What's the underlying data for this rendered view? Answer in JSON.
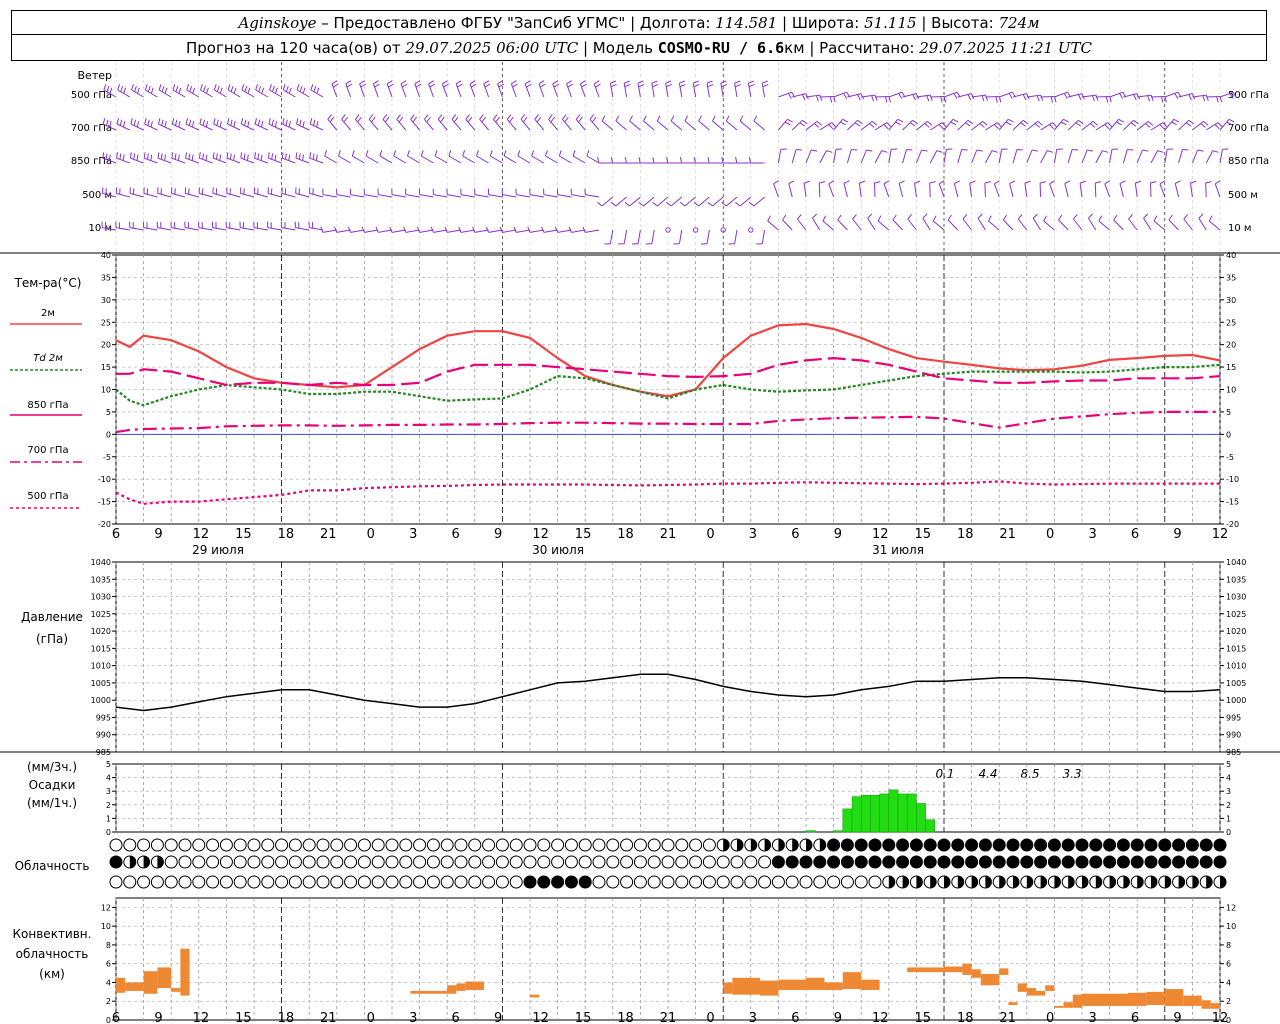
{
  "header": {
    "station": "Aginskoye",
    "provider": " – Предоставлено ФГБУ \"ЗапСиб УГМС\" | Долгота: ",
    "lon": "114.581",
    "lat_label": " | Широта: ",
    "lat": "51.115",
    "alt_label": " | Высота: ",
    "alt": "724м",
    "forecast_label": "Прогноз на 120 часа(ов) от ",
    "forecast_time": "29.07.2025 06:00 UTC",
    "model_label": " | Модель ",
    "model": "COSMO-RU / 6.6",
    "model_unit": "км",
    "calc_label": " | Рассчитано: ",
    "calc_time": "29.07.2025 11:21 UTC"
  },
  "labels": {
    "wind": "Ветер",
    "levels": [
      "500 гПа",
      "700 гПа",
      "850 гПа",
      "500 м",
      "10  м"
    ],
    "temp_title": "Тем-ра(°C)",
    "legend": [
      "2м",
      "Td  2м",
      "850 гПа",
      "700 гПа",
      "500 гПа"
    ],
    "pressure_title": "Давление",
    "pressure_unit": "(гПа)",
    "precip_unit1": "(мм/3ч.)",
    "precip_title": "Осадки",
    "precip_unit2": "(мм/1ч.)",
    "cloud_title": "Облачность",
    "conv1": "Конвективн.",
    "conv2": "облачность",
    "conv3": "(км)",
    "date_labels": [
      "29 июля",
      "30 июля",
      "31 июля"
    ],
    "x_ticks": [
      "6",
      "9",
      "12",
      "15",
      "18",
      "21",
      "0",
      "3",
      "6",
      "9",
      "12",
      "15",
      "18",
      "21",
      "0",
      "3",
      "6",
      "9",
      "12",
      "15",
      "18",
      "21",
      "0",
      "3",
      "6",
      "9",
      "12"
    ],
    "precip_totals": [
      "0.1",
      "4.4",
      "8.5",
      "3.3"
    ]
  },
  "colors": {
    "t2m": "#ee4444",
    "td2m": "#228822",
    "t850": "#e8007a",
    "t700": "#e8007a",
    "t500": "#e8007a",
    "wind": "#8833cc",
    "precip": "#22dd11",
    "conv": "#ee8833",
    "zero_line": "#4444cc"
  },
  "chart_data": [
    {
      "type": "line",
      "name": "temperature",
      "x_hours": [
        0,
        1.5,
        3,
        6,
        9,
        12,
        15,
        18,
        21,
        24,
        27,
        30,
        33,
        36,
        39,
        42,
        45,
        48,
        51,
        54,
        57,
        60,
        63,
        66,
        69,
        72,
        75,
        78,
        81,
        84,
        87,
        90,
        93,
        96,
        99,
        102,
        105,
        108,
        111,
        114,
        117,
        120
      ],
      "ylim": [
        -20,
        40
      ],
      "series": [
        {
          "name": "2м",
          "values": [
            21,
            19.5,
            22,
            21,
            18.5,
            15,
            12.5,
            11.5,
            11,
            10.5,
            11,
            15,
            19,
            22,
            23,
            23,
            21.5,
            17,
            13,
            11,
            9.5,
            8.5,
            10,
            17,
            22,
            24.3,
            24.6,
            23.5,
            21.5,
            19,
            17,
            16.2,
            15.5,
            14.7,
            14.3,
            14.5,
            15.3,
            16.6,
            17,
            17.5,
            17.7,
            16.5
          ]
        },
        {
          "name": "Td  2м",
          "values": [
            10,
            7.5,
            6.5,
            8.5,
            10,
            11,
            10.5,
            10,
            9,
            9,
            9.5,
            9.5,
            8.5,
            7.5,
            7.8,
            8,
            10,
            13,
            12.5,
            11,
            9.5,
            8,
            10,
            11,
            10,
            9.5,
            9.8,
            10,
            11,
            12,
            13,
            13.5,
            14,
            14,
            14,
            14,
            13.8,
            14,
            14.5,
            15,
            15,
            15.5
          ]
        },
        {
          "name": "850 гПа",
          "values": [
            13.5,
            13.5,
            14.5,
            14,
            12.5,
            11,
            11.5,
            11.5,
            11,
            11.5,
            11,
            11,
            11.5,
            14,
            15.5,
            15.5,
            15.5,
            15,
            14.5,
            14,
            13.5,
            13,
            12.8,
            13,
            13.5,
            15.5,
            16.5,
            17,
            16.5,
            15.5,
            14,
            12.5,
            12,
            11.5,
            11.5,
            11.8,
            12,
            12,
            12.5,
            12.5,
            12.5,
            13
          ]
        },
        {
          "name": "700 гПа",
          "values": [
            0.5,
            1,
            1.2,
            1.3,
            1.4,
            1.8,
            1.9,
            2.0,
            2.0,
            1.9,
            2.0,
            2.1,
            2.1,
            2.2,
            2.2,
            2.3,
            2.5,
            2.6,
            2.6,
            2.5,
            2.4,
            2.4,
            2.3,
            2.3,
            2.3,
            3,
            3.3,
            3.6,
            3.7,
            3.8,
            3.9,
            3.5,
            2.5,
            1.5,
            2.5,
            3.5,
            4,
            4.5,
            4.8,
            5,
            5,
            5
          ]
        },
        {
          "name": "500 гПа",
          "values": [
            -13,
            -14.5,
            -15.5,
            -15,
            -15,
            -14.5,
            -14,
            -13.5,
            -12.5,
            -12.5,
            -12,
            -11.8,
            -11.6,
            -11.5,
            -11.3,
            -11.2,
            -11.2,
            -11.2,
            -11.2,
            -11.3,
            -11.4,
            -11.3,
            -11.2,
            -11,
            -11,
            -10.8,
            -10.7,
            -10.8,
            -10.9,
            -11,
            -11.1,
            -11,
            -10.8,
            -10.5,
            -11,
            -11.2,
            -11.1,
            -11,
            -11,
            -11,
            -11,
            -11
          ]
        }
      ]
    },
    {
      "type": "line",
      "name": "pressure",
      "x_hours": [
        0,
        3,
        6,
        9,
        12,
        15,
        18,
        21,
        24,
        27,
        30,
        33,
        36,
        39,
        42,
        45,
        48,
        51,
        54,
        57,
        60,
        63,
        66,
        69,
        72,
        75,
        78,
        81,
        84,
        87,
        90,
        93,
        96,
        99,
        102,
        105,
        108,
        111,
        114,
        117,
        120
      ],
      "ylim": [
        985,
        1040
      ],
      "series": [
        {
          "name": "pressure",
          "values": [
            998,
            997,
            998,
            999.5,
            1001,
            1002,
            1003,
            1003,
            1001.5,
            1000,
            999,
            998,
            998,
            999,
            1001,
            1003,
            1005,
            1005.5,
            1006.5,
            1007.5,
            1007.5,
            1006,
            1004,
            1002.5,
            1001.5,
            1001,
            1001.5,
            1003,
            1004,
            1005.5,
            1005.5,
            1006,
            1006.5,
            1006.5,
            1006,
            1005.5,
            1004.5,
            1003.5,
            1002.5,
            1002.5,
            1003
          ]
        }
      ]
    },
    {
      "type": "bar",
      "name": "precipitation",
      "ylim": [
        0,
        5
      ],
      "x_hours": [
        75,
        78,
        79,
        80,
        81,
        82,
        83,
        84,
        85,
        86,
        87,
        88,
        89
      ],
      "values": [
        0.1,
        0.1,
        1.7,
        2.6,
        2.7,
        2.7,
        2.8,
        3.1,
        2.8,
        2.8,
        2.1,
        0.9,
        0
      ],
      "totals": [
        {
          "hour": 72,
          "value": "0.1"
        },
        {
          "hour": 78,
          "value": "4.4"
        },
        {
          "hour": 81,
          "value": "8.5"
        },
        {
          "hour": 84,
          "value": "3.3"
        }
      ]
    },
    {
      "type": "bar",
      "name": "convective_cloud",
      "ylim": [
        0,
        13
      ],
      "segments": [
        {
          "x0": 0,
          "x1": 1,
          "y0": 2.9,
          "y1": 4.5
        },
        {
          "x0": 1,
          "x1": 3,
          "y0": 3.1,
          "y1": 4
        },
        {
          "x0": 3,
          "x1": 4.5,
          "y0": 2.8,
          "y1": 5.2
        },
        {
          "x0": 4.5,
          "x1": 6,
          "y0": 3.4,
          "y1": 5.6
        },
        {
          "x0": 6,
          "x1": 7,
          "y0": 3,
          "y1": 3.4
        },
        {
          "x0": 7,
          "x1": 8,
          "y0": 2.6,
          "y1": 7.6
        },
        {
          "x0": 32,
          "x1": 36,
          "y0": 2.8,
          "y1": 3.1
        },
        {
          "x0": 36,
          "x1": 37,
          "y0": 2.8,
          "y1": 3.7
        },
        {
          "x0": 37,
          "x1": 38,
          "y0": 3.1,
          "y1": 3.9
        },
        {
          "x0": 38,
          "x1": 40,
          "y0": 3.2,
          "y1": 4.1
        },
        {
          "x0": 45,
          "x1": 46,
          "y0": 2.4,
          "y1": 2.7
        },
        {
          "x0": 66,
          "x1": 67,
          "y0": 2.8,
          "y1": 4.0
        },
        {
          "x0": 67,
          "x1": 70,
          "y0": 2.7,
          "y1": 4.5
        },
        {
          "x0": 70,
          "x1": 72,
          "y0": 2.6,
          "y1": 4.2
        },
        {
          "x0": 72,
          "x1": 75,
          "y0": 3.2,
          "y1": 4.3
        },
        {
          "x0": 75,
          "x1": 77,
          "y0": 3.2,
          "y1": 4.5
        },
        {
          "x0": 77,
          "x1": 79,
          "y0": 3.2,
          "y1": 4.0
        },
        {
          "x0": 79,
          "x1": 81,
          "y0": 3.3,
          "y1": 5.1
        },
        {
          "x0": 81,
          "x1": 83,
          "y0": 3.2,
          "y1": 4.3
        },
        {
          "x0": 86,
          "x1": 90,
          "y0": 5.1,
          "y1": 5.6
        },
        {
          "x0": 90,
          "x1": 92,
          "y0": 5.1,
          "y1": 5.7
        },
        {
          "x0": 92,
          "x1": 93,
          "y0": 4.8,
          "y1": 6.0
        },
        {
          "x0": 93,
          "x1": 94,
          "y0": 4.5,
          "y1": 5.4
        },
        {
          "x0": 94,
          "x1": 96,
          "y0": 3.7,
          "y1": 4.9
        },
        {
          "x0": 96,
          "x1": 97,
          "y0": 4.8,
          "y1": 5.5
        },
        {
          "x0": 97,
          "x1": 98,
          "y0": 1.6,
          "y1": 1.9
        },
        {
          "x0": 98,
          "x1": 99,
          "y0": 3.0,
          "y1": 3.9
        },
        {
          "x0": 99,
          "x1": 100,
          "y0": 2.6,
          "y1": 3.4
        },
        {
          "x0": 100,
          "x1": 101,
          "y0": 2.6,
          "y1": 3.1
        },
        {
          "x0": 101,
          "x1": 102,
          "y0": 3.1,
          "y1": 3.7
        },
        {
          "x0": 102,
          "x1": 103,
          "y0": 1.3,
          "y1": 1.5
        },
        {
          "x0": 103,
          "x1": 104,
          "y0": 1.3,
          "y1": 1.9
        },
        {
          "x0": 104,
          "x1": 105,
          "y0": 1.3,
          "y1": 2.7
        },
        {
          "x0": 105,
          "x1": 110,
          "y0": 1.5,
          "y1": 2.8
        },
        {
          "x0": 110,
          "x1": 112,
          "y0": 1.5,
          "y1": 2.9
        },
        {
          "x0": 112,
          "x1": 114,
          "y0": 1.6,
          "y1": 3.0
        },
        {
          "x0": 114,
          "x1": 116,
          "y0": 1.5,
          "y1": 3.3
        },
        {
          "x0": 116,
          "x1": 118,
          "y0": 1.5,
          "y1": 2.6
        },
        {
          "x0": 118,
          "x1": 119,
          "y0": 1.2,
          "y1": 2.1
        },
        {
          "x0": 119,
          "x1": 120,
          "y0": 1.2,
          "y1": 1.8
        }
      ]
    }
  ]
}
